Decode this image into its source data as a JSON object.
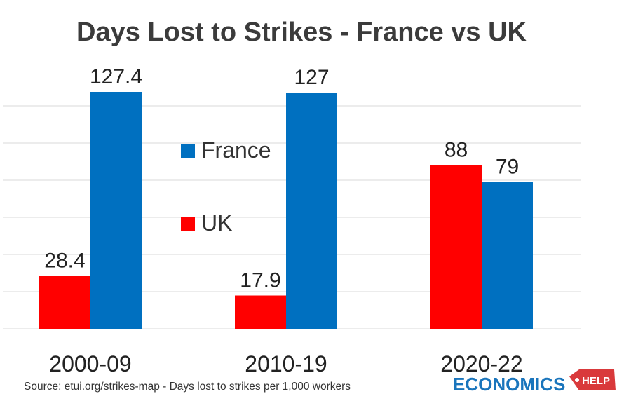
{
  "chart_data": {
    "type": "bar",
    "title": "Days Lost to Strikes - France vs UK",
    "categories": [
      "2000-09",
      "2010-19",
      "2020-22"
    ],
    "series": [
      {
        "name": "UK",
        "color": "#ff0000",
        "values": [
          28.4,
          17.9,
          88
        ]
      },
      {
        "name": "France",
        "color": "#0070c0",
        "values": [
          127.4,
          127,
          79
        ]
      }
    ],
    "data_labels": {
      "UK": [
        "28.4",
        "17.9",
        "88"
      ],
      "France": [
        "127.4",
        "127",
        "79"
      ]
    },
    "ylim": [
      0,
      127.4
    ],
    "grid": true,
    "legend": {
      "placement": "center",
      "order": [
        "France",
        "UK"
      ]
    },
    "xlabel": "",
    "ylabel": ""
  },
  "source_note": "Source: etui.org/strikes-map - Days lost to strikes per 1,000 workers",
  "logo": {
    "text": "ECONOMICS",
    "badge": "HELP",
    "color": "#1a75bc",
    "badge_color": "#d9393b"
  }
}
